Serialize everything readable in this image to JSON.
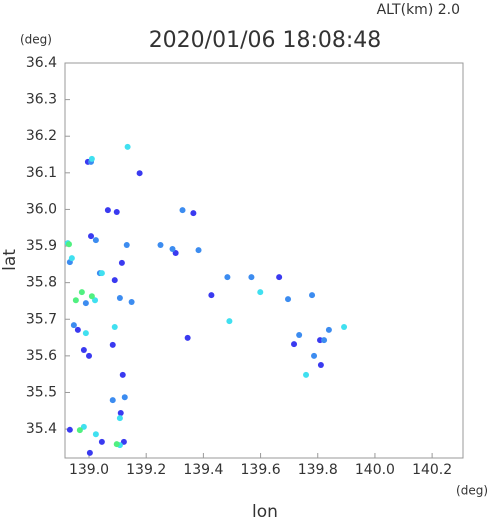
{
  "chart_data": {
    "type": "scatter",
    "title": "2020/01/06 18:08:48",
    "subtitle": "ALT(km)  2.0",
    "x_label": "lon",
    "y_label": "lat",
    "x_unit": "(deg)",
    "y_unit": "(deg)",
    "xlim": [
      138.916,
      140.308
    ],
    "ylim": [
      35.321,
      36.4
    ],
    "xticks": [
      {
        "value": 139,
        "label": "139.0"
      },
      139.2,
      139.4,
      139.6,
      139.8,
      {
        "value": 140,
        "label": "140.0"
      },
      140.2
    ],
    "yticks": [
      36.4,
      36.3,
      36.2,
      36.1,
      {
        "value": 36,
        "label": "36.0"
      },
      35.9,
      35.8,
      35.7,
      35.6,
      35.5,
      35.4
    ],
    "series": [
      {
        "color": "#3a3af0",
        "x": [
          138.996,
          139.007,
          139.066,
          139.097,
          139.177,
          139.303,
          139.365,
          139.115,
          139.09,
          139.118,
          139.111,
          138.982,
          139.0,
          138.933,
          139.003,
          139.122,
          139.045,
          139.345,
          139.808,
          139.717,
          139.811,
          139.428,
          139.665,
          139.083,
          138.961
        ],
        "y": [
          36.13,
          35.927,
          35.998,
          35.993,
          36.099,
          35.881,
          35.99,
          35.854,
          35.807,
          35.548,
          35.444,
          35.616,
          35.6,
          35.398,
          35.335,
          35.365,
          35.365,
          35.649,
          35.643,
          35.632,
          35.575,
          35.766,
          35.815,
          35.63,
          35.671
        ]
      },
      {
        "color": "#3c8cf0",
        "x": [
          139.007,
          139.024,
          139.132,
          139.038,
          139.108,
          138.989,
          138.933,
          138.947,
          139.25,
          139.292,
          139.383,
          139.484,
          139.568,
          139.696,
          139.78,
          139.822,
          139.735,
          139.787,
          139.839,
          139.125,
          139.083,
          139.149,
          139.327
        ],
        "y": [
          36.13,
          35.916,
          35.903,
          35.826,
          35.758,
          35.744,
          35.856,
          35.684,
          35.903,
          35.892,
          35.889,
          35.815,
          35.815,
          35.755,
          35.766,
          35.643,
          35.657,
          35.6,
          35.671,
          35.487,
          35.479,
          35.747,
          35.998
        ]
      },
      {
        "color": "#40e0f0",
        "x": [
          139.135,
          139.01,
          138.926,
          138.94,
          139.045,
          138.989,
          139.09,
          139.491,
          139.599,
          139.759,
          139.021,
          139.108,
          138.982,
          139.024,
          139.892,
          139.108
        ],
        "y": [
          36.171,
          36.138,
          35.908,
          35.867,
          35.826,
          35.662,
          35.679,
          35.695,
          35.774,
          35.548,
          35.752,
          35.43,
          35.406,
          35.386,
          35.679,
          35.356
        ]
      },
      {
        "color": "#50f080",
        "x": [
          138.93,
          138.975,
          139.01,
          138.954,
          139.097,
          138.968
        ],
        "y": [
          35.905,
          35.774,
          35.763,
          35.752,
          35.359,
          35.397
        ]
      }
    ]
  }
}
